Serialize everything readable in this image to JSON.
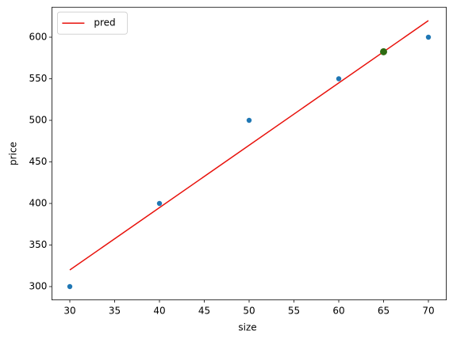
{
  "chart_data": {
    "type": "scatter",
    "xlabel": "size",
    "ylabel": "price",
    "xlim": [
      28,
      72
    ],
    "ylim": [
      284,
      636
    ],
    "xticks": [
      30,
      35,
      40,
      45,
      50,
      55,
      60,
      65,
      70
    ],
    "yticks": [
      300,
      350,
      400,
      450,
      500,
      550,
      600
    ],
    "legend": "upper left",
    "series": [
      {
        "type": "scatter",
        "color": "#1f77b4",
        "x": [
          30,
          40,
          50,
          60,
          70
        ],
        "values": [
          300,
          400,
          500,
          550,
          600
        ]
      },
      {
        "type": "line",
        "name": "pred",
        "color": "#e8120c",
        "x": [
          30,
          40,
          50,
          60,
          70
        ],
        "values": [
          320,
          395,
          470,
          545,
          620
        ]
      },
      {
        "type": "scatter",
        "color": "#2e6b12",
        "x": [
          65
        ],
        "values": [
          582.5
        ]
      }
    ]
  }
}
